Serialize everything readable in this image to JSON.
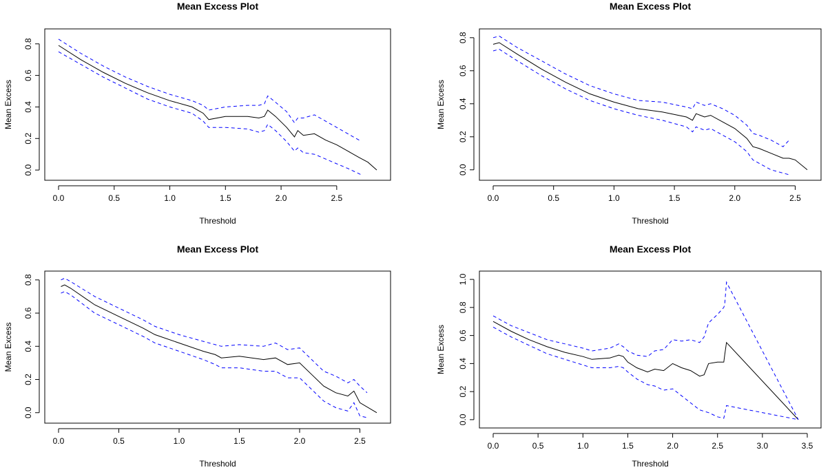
{
  "chart_data": [
    {
      "type": "line",
      "title": "Mean Excess Plot",
      "xlabel": "Threshold",
      "ylabel": "Mean Excess",
      "xlim": [
        0,
        2.86
      ],
      "ylim": [
        -0.03,
        0.86
      ],
      "xticks": [
        "0.0",
        "0.5",
        "1.0",
        "1.5",
        "2.0",
        "2.5"
      ],
      "yticks": [
        "0.0",
        "0.2",
        "0.4",
        "0.6",
        "0.8"
      ],
      "grid": false,
      "series": [
        {
          "role": "mean",
          "color": "#000000",
          "x": [
            0.0,
            0.2,
            0.4,
            0.6,
            0.8,
            1.0,
            1.2,
            1.3,
            1.35,
            1.5,
            1.7,
            1.8,
            1.85,
            1.88,
            1.95,
            2.05,
            2.12,
            2.15,
            2.2,
            2.3,
            2.4,
            2.5,
            2.6,
            2.7,
            2.78,
            2.86
          ],
          "y": [
            0.79,
            0.7,
            0.62,
            0.55,
            0.49,
            0.44,
            0.4,
            0.36,
            0.32,
            0.34,
            0.34,
            0.33,
            0.34,
            0.38,
            0.34,
            0.27,
            0.21,
            0.25,
            0.22,
            0.23,
            0.19,
            0.16,
            0.12,
            0.08,
            0.05,
            0.0
          ]
        },
        {
          "role": "upper-ci",
          "color": "#0000ff",
          "x": [
            0.0,
            0.2,
            0.4,
            0.6,
            0.8,
            1.0,
            1.2,
            1.3,
            1.35,
            1.5,
            1.7,
            1.8,
            1.85,
            1.88,
            1.95,
            2.05,
            2.12,
            2.15,
            2.2,
            2.3,
            2.4,
            2.5,
            2.6,
            2.7,
            2.72
          ],
          "y": [
            0.83,
            0.74,
            0.66,
            0.59,
            0.53,
            0.48,
            0.44,
            0.41,
            0.38,
            0.4,
            0.41,
            0.41,
            0.42,
            0.47,
            0.43,
            0.37,
            0.3,
            0.33,
            0.33,
            0.35,
            0.31,
            0.27,
            0.23,
            0.19,
            0.18
          ]
        },
        {
          "role": "lower-ci",
          "color": "#0000ff",
          "x": [
            0.0,
            0.2,
            0.4,
            0.6,
            0.8,
            1.0,
            1.2,
            1.3,
            1.35,
            1.5,
            1.7,
            1.8,
            1.85,
            1.88,
            1.95,
            2.05,
            2.12,
            2.15,
            2.2,
            2.3,
            2.4,
            2.5,
            2.6,
            2.72
          ],
          "y": [
            0.75,
            0.67,
            0.59,
            0.52,
            0.45,
            0.4,
            0.36,
            0.31,
            0.27,
            0.27,
            0.26,
            0.24,
            0.25,
            0.29,
            0.25,
            0.18,
            0.12,
            0.14,
            0.11,
            0.1,
            0.07,
            0.04,
            0.01,
            -0.03
          ]
        }
      ]
    },
    {
      "type": "line",
      "title": "Mean Excess Plot",
      "xlabel": "Threshold",
      "ylabel": "Mean Excess",
      "xlim": [
        0,
        2.6
      ],
      "ylim": [
        -0.03,
        0.82
      ],
      "xticks": [
        "0.0",
        "0.5",
        "1.0",
        "1.5",
        "2.0",
        "2.5"
      ],
      "yticks": [
        "0.0",
        "0.2",
        "0.4",
        "0.6",
        "0.8"
      ],
      "grid": false,
      "series": [
        {
          "role": "mean",
          "color": "#000000",
          "x": [
            0.0,
            0.05,
            0.2,
            0.4,
            0.6,
            0.8,
            1.0,
            1.2,
            1.4,
            1.6,
            1.65,
            1.68,
            1.75,
            1.8,
            1.9,
            2.0,
            2.1,
            2.15,
            2.2,
            2.3,
            2.4,
            2.45,
            2.5,
            2.6
          ],
          "y": [
            0.76,
            0.77,
            0.7,
            0.61,
            0.53,
            0.46,
            0.41,
            0.37,
            0.35,
            0.32,
            0.3,
            0.34,
            0.32,
            0.33,
            0.29,
            0.25,
            0.19,
            0.14,
            0.13,
            0.1,
            0.07,
            0.07,
            0.06,
            0.0
          ]
        },
        {
          "role": "upper-ci",
          "color": "#0000ff",
          "x": [
            0.0,
            0.05,
            0.2,
            0.4,
            0.6,
            0.8,
            1.0,
            1.2,
            1.4,
            1.6,
            1.65,
            1.68,
            1.75,
            1.8,
            1.9,
            2.0,
            2.1,
            2.15,
            2.2,
            2.3,
            2.4,
            2.45
          ],
          "y": [
            0.8,
            0.81,
            0.74,
            0.66,
            0.58,
            0.51,
            0.46,
            0.42,
            0.41,
            0.38,
            0.37,
            0.41,
            0.39,
            0.4,
            0.37,
            0.33,
            0.27,
            0.22,
            0.21,
            0.18,
            0.14,
            0.18
          ]
        },
        {
          "role": "lower-ci",
          "color": "#0000ff",
          "x": [
            0.0,
            0.05,
            0.2,
            0.4,
            0.6,
            0.8,
            1.0,
            1.2,
            1.4,
            1.6,
            1.65,
            1.68,
            1.75,
            1.8,
            1.9,
            2.0,
            2.1,
            2.15,
            2.2,
            2.3,
            2.4,
            2.45
          ],
          "y": [
            0.72,
            0.73,
            0.66,
            0.57,
            0.49,
            0.42,
            0.37,
            0.33,
            0.3,
            0.26,
            0.23,
            0.26,
            0.24,
            0.25,
            0.21,
            0.17,
            0.11,
            0.06,
            0.04,
            0.0,
            -0.02,
            -0.03
          ]
        }
      ]
    },
    {
      "type": "line",
      "title": "Mean Excess Plot",
      "xlabel": "Threshold",
      "ylabel": "Mean Excess",
      "xlim": [
        0,
        2.64
      ],
      "ylim": [
        -0.03,
        0.82
      ],
      "xticks": [
        "0.0",
        "0.5",
        "1.0",
        "1.5",
        "2.0",
        "2.5"
      ],
      "yticks": [
        "0.0",
        "0.2",
        "0.4",
        "0.6",
        "0.8"
      ],
      "grid": false,
      "series": [
        {
          "role": "mean",
          "color": "#000000",
          "x": [
            0.02,
            0.05,
            0.1,
            0.3,
            0.5,
            0.7,
            0.8,
            1.0,
            1.2,
            1.3,
            1.35,
            1.5,
            1.7,
            1.8,
            1.9,
            2.0,
            2.1,
            2.2,
            2.3,
            2.4,
            2.45,
            2.5,
            2.64
          ],
          "y": [
            0.76,
            0.77,
            0.75,
            0.65,
            0.58,
            0.51,
            0.47,
            0.42,
            0.37,
            0.35,
            0.33,
            0.34,
            0.32,
            0.33,
            0.29,
            0.3,
            0.23,
            0.16,
            0.12,
            0.1,
            0.13,
            0.06,
            0.0
          ]
        },
        {
          "role": "upper-ci",
          "color": "#0000ff",
          "x": [
            0.02,
            0.05,
            0.1,
            0.3,
            0.5,
            0.7,
            0.8,
            1.0,
            1.2,
            1.3,
            1.35,
            1.5,
            1.7,
            1.8,
            1.9,
            2.0,
            2.1,
            2.2,
            2.3,
            2.4,
            2.45,
            2.5,
            2.56
          ],
          "y": [
            0.8,
            0.81,
            0.79,
            0.7,
            0.63,
            0.56,
            0.52,
            0.47,
            0.43,
            0.41,
            0.4,
            0.41,
            0.4,
            0.42,
            0.38,
            0.39,
            0.32,
            0.25,
            0.22,
            0.18,
            0.2,
            0.16,
            0.12
          ]
        },
        {
          "role": "lower-ci",
          "color": "#0000ff",
          "x": [
            0.02,
            0.05,
            0.1,
            0.3,
            0.5,
            0.7,
            0.8,
            1.0,
            1.2,
            1.3,
            1.35,
            1.5,
            1.7,
            1.8,
            1.9,
            2.0,
            2.1,
            2.2,
            2.3,
            2.4,
            2.45,
            2.5,
            2.56
          ],
          "y": [
            0.72,
            0.73,
            0.71,
            0.6,
            0.53,
            0.46,
            0.42,
            0.37,
            0.32,
            0.29,
            0.27,
            0.27,
            0.25,
            0.25,
            0.21,
            0.21,
            0.14,
            0.07,
            0.03,
            0.01,
            0.06,
            -0.02,
            -0.03
          ]
        }
      ]
    },
    {
      "type": "line",
      "title": "Mean Excess Plot",
      "xlabel": "Threshold",
      "ylabel": "Mean Excess",
      "xlim": [
        0,
        3.5
      ],
      "ylim": [
        -0.02,
        1.02
      ],
      "xticks": [
        "0.0",
        "0.5",
        "1.0",
        "1.5",
        "2.0",
        "2.5",
        "3.0",
        "3.5"
      ],
      "yticks": [
        "0.0",
        "0.2",
        "0.4",
        "0.6",
        "0.8",
        "1.0"
      ],
      "grid": false,
      "series": [
        {
          "role": "mean",
          "color": "#000000",
          "x": [
            0.0,
            0.2,
            0.4,
            0.6,
            0.8,
            1.0,
            1.1,
            1.3,
            1.4,
            1.45,
            1.5,
            1.6,
            1.72,
            1.8,
            1.9,
            2.0,
            2.1,
            2.2,
            2.3,
            2.35,
            2.4,
            2.5,
            2.57,
            2.58,
            2.6,
            3.4
          ],
          "y": [
            0.7,
            0.63,
            0.57,
            0.52,
            0.48,
            0.45,
            0.43,
            0.44,
            0.46,
            0.45,
            0.41,
            0.37,
            0.34,
            0.36,
            0.35,
            0.4,
            0.37,
            0.35,
            0.31,
            0.32,
            0.4,
            0.41,
            0.41,
            0.46,
            0.55,
            0.0
          ]
        },
        {
          "role": "upper-ci",
          "color": "#0000ff",
          "x": [
            0.0,
            0.2,
            0.4,
            0.6,
            0.8,
            1.0,
            1.1,
            1.3,
            1.4,
            1.45,
            1.5,
            1.6,
            1.72,
            1.8,
            1.9,
            2.0,
            2.1,
            2.2,
            2.3,
            2.35,
            2.4,
            2.5,
            2.57,
            2.58,
            2.6,
            3.4
          ],
          "y": [
            0.74,
            0.67,
            0.62,
            0.57,
            0.54,
            0.51,
            0.49,
            0.51,
            0.54,
            0.52,
            0.49,
            0.46,
            0.45,
            0.49,
            0.5,
            0.57,
            0.56,
            0.57,
            0.55,
            0.59,
            0.69,
            0.75,
            0.8,
            0.82,
            0.98,
            0.0
          ]
        },
        {
          "role": "lower-ci",
          "color": "#0000ff",
          "x": [
            0.0,
            0.2,
            0.4,
            0.6,
            0.8,
            1.0,
            1.1,
            1.3,
            1.4,
            1.45,
            1.5,
            1.6,
            1.72,
            1.8,
            1.9,
            2.0,
            2.1,
            2.2,
            2.3,
            2.35,
            2.4,
            2.5,
            2.57,
            2.58,
            2.6,
            3.4
          ],
          "y": [
            0.66,
            0.59,
            0.53,
            0.47,
            0.43,
            0.39,
            0.37,
            0.37,
            0.38,
            0.37,
            0.34,
            0.29,
            0.25,
            0.24,
            0.21,
            0.22,
            0.17,
            0.12,
            0.07,
            0.06,
            0.05,
            0.02,
            0.01,
            0.04,
            0.1,
            0.0
          ]
        }
      ]
    }
  ]
}
